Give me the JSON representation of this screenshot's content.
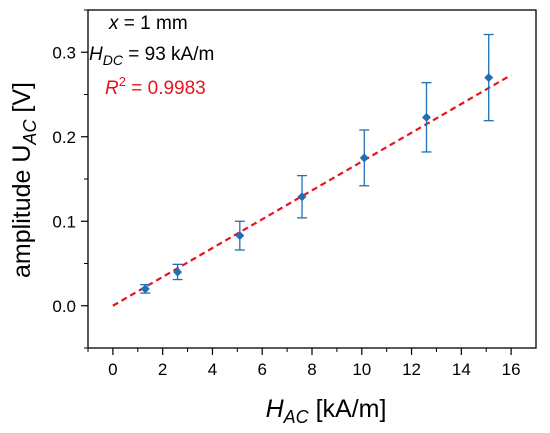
{
  "chart_data": {
    "type": "scatter",
    "xlabel": {
      "main": "H",
      "sub": "AC",
      "unit": " [kA/m]"
    },
    "ylabel": {
      "main": "amplitude U",
      "sub": "AC",
      "unit": " [V]"
    },
    "xlim": [
      -1,
      17
    ],
    "ylim": [
      -0.05,
      0.35
    ],
    "x_ticks": [
      0,
      2,
      4,
      6,
      8,
      10,
      12,
      14,
      16
    ],
    "y_ticks": [
      0.0,
      0.1,
      0.2,
      0.3
    ],
    "x_tick_labels": [
      "0",
      "2",
      "4",
      "6",
      "8",
      "10",
      "12",
      "14",
      "16"
    ],
    "y_tick_labels": [
      "0.0",
      "0.1",
      "0.2",
      "0.3"
    ],
    "grid": false,
    "series": [
      {
        "marker": "diamond",
        "color": "#1f6fb4",
        "x": [
          1.3,
          2.6,
          5.1,
          7.6,
          10.1,
          12.6,
          15.1
        ],
        "y": [
          0.02,
          0.04,
          0.083,
          0.129,
          0.175,
          0.223,
          0.27
        ],
        "y_err": [
          0.005,
          0.009,
          0.017,
          0.025,
          0.033,
          0.041,
          0.051
        ]
      }
    ],
    "fit_line": {
      "style": "dashed",
      "color": "#e8141c",
      "x": [
        0,
        16
      ],
      "y": [
        0.0,
        0.273
      ]
    },
    "annotations": {
      "line1": {
        "var": "x",
        "rest": " = 1 mm"
      },
      "line2": {
        "var": "H",
        "sub": "DC",
        "rest": " = 93 kA/m"
      },
      "line3": {
        "var": "R",
        "sup": "2",
        "rest": " = 0.9983",
        "color": "#e8141c"
      }
    }
  }
}
